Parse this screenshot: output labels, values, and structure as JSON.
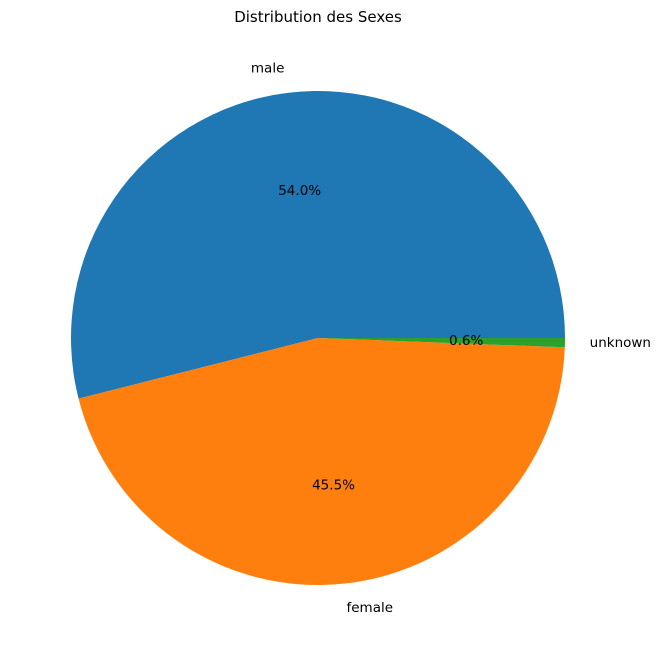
{
  "chart_data": {
    "type": "pie",
    "title": "Distribution des Sexes",
    "categories": [
      "male",
      "female",
      "unknown"
    ],
    "values": [
      54.0,
      45.5,
      0.6
    ],
    "percent_labels": [
      "54.0%",
      "45.5%",
      "0.6%"
    ],
    "colors": [
      "#1f77b4",
      "#ff7f0e",
      "#2ca02c"
    ],
    "start_angle_deg": 0,
    "direction": "counterclockwise",
    "legend": "none"
  }
}
